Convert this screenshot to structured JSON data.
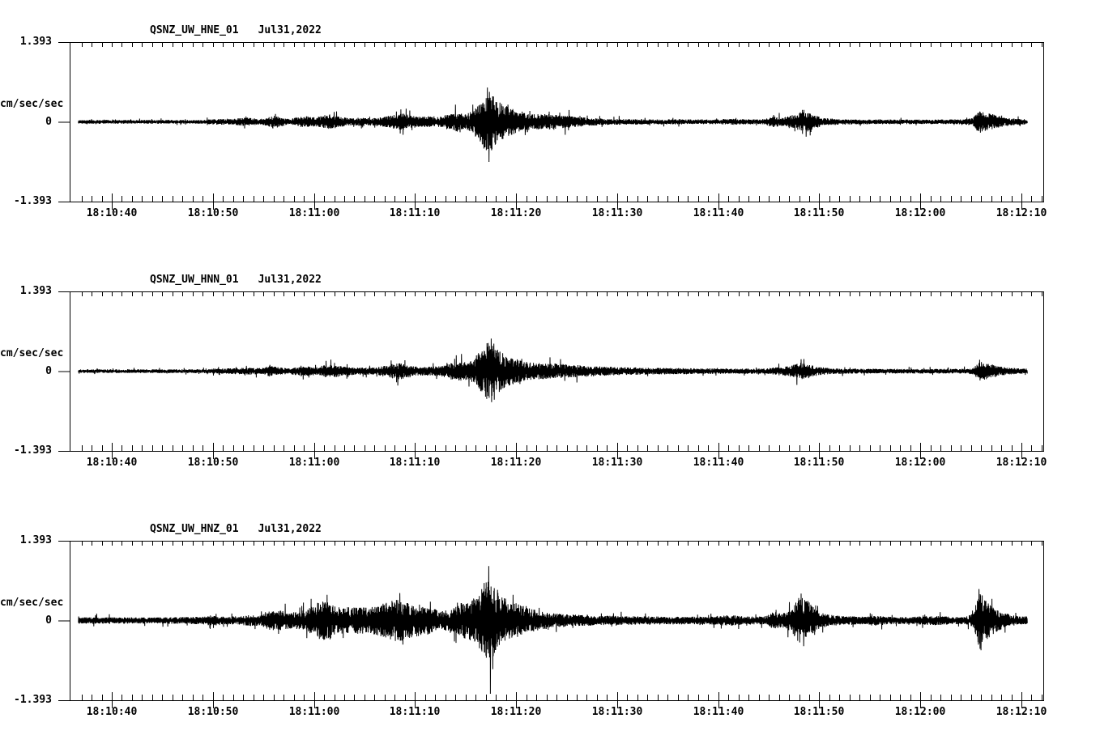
{
  "page": {
    "background": "#ffffff",
    "trace_color": "#000000",
    "frame_color": "#000000"
  },
  "axis": {
    "y_max_label": "1.393",
    "y_zero_label": "0",
    "y_min_label": "-1.393",
    "y_units": "cm/sec/sec",
    "x_tick_labels": [
      "18:10:40",
      "18:10:50",
      "18:11:00",
      "18:11:10",
      "18:11:20",
      "18:11:30",
      "18:11:40",
      "18:11:50",
      "18:12:00",
      "18:12:10"
    ],
    "x_tick_seconds": [
      40,
      50,
      60,
      70,
      80,
      90,
      100,
      110,
      120,
      130
    ]
  },
  "panels": [
    {
      "station": "QSNZ_UW_HNE_01",
      "date": "Jul31,2022"
    },
    {
      "station": "QSNZ_UW_HNN_01",
      "date": "Jul31,2022"
    },
    {
      "station": "QSNZ_UW_HNZ_01",
      "date": "Jul31,2022"
    }
  ],
  "chart_data": [
    {
      "type": "line",
      "variant": "seismogram-trace",
      "title": "QSNZ_UW_HNE_01  Jul31,2022",
      "station": "QSNZ_UW_HNE_01",
      "channel": "HNE",
      "date": "Jul31,2022",
      "ylabel": "cm/sec/sec",
      "ylim": [
        -1.393,
        1.393
      ],
      "y_tick_values": [
        1.393,
        0,
        -1.393
      ],
      "x_tick_labels": [
        "18:10:40",
        "18:10:50",
        "18:11:00",
        "18:11:10",
        "18:11:20",
        "18:11:30",
        "18:11:40",
        "18:11:50",
        "18:12:00",
        "18:12:10"
      ],
      "x_tick_seconds_after_1810": [
        40,
        50,
        60,
        70,
        80,
        90,
        100,
        110,
        120,
        130
      ],
      "trace_start_sec": 36.7,
      "trace_end_sec": 130.6,
      "noise_seed": 11,
      "envelope_sec_amp": [
        [
          36.7,
          0.03
        ],
        [
          49,
          0.03
        ],
        [
          50,
          0.042
        ],
        [
          52,
          0.05
        ],
        [
          53.5,
          0.07
        ],
        [
          54.6,
          0.045
        ],
        [
          55.3,
          0.06
        ],
        [
          56,
          0.11
        ],
        [
          56.8,
          0.07
        ],
        [
          57.6,
          0.045
        ],
        [
          58.4,
          0.08
        ],
        [
          59.3,
          0.09
        ],
        [
          60.2,
          0.07
        ],
        [
          60.8,
          0.1
        ],
        [
          61.6,
          0.12
        ],
        [
          62.6,
          0.08
        ],
        [
          63.5,
          0.06
        ],
        [
          64.5,
          0.065
        ],
        [
          65.5,
          0.06
        ],
        [
          66.5,
          0.07
        ],
        [
          67.5,
          0.1
        ],
        [
          68.5,
          0.14
        ],
        [
          69.5,
          0.11
        ],
        [
          70.5,
          0.08
        ],
        [
          71.5,
          0.09
        ],
        [
          72.5,
          0.08
        ],
        [
          73.5,
          0.12
        ],
        [
          74.2,
          0.16
        ],
        [
          75,
          0.12
        ],
        [
          75.8,
          0.18
        ],
        [
          76.4,
          0.3
        ],
        [
          77,
          0.52
        ],
        [
          77.4,
          0.55
        ],
        [
          78,
          0.38
        ],
        [
          78.6,
          0.28
        ],
        [
          79.2,
          0.26
        ],
        [
          80,
          0.17
        ],
        [
          81,
          0.14
        ],
        [
          82,
          0.12
        ],
        [
          83,
          0.13
        ],
        [
          84,
          0.11
        ],
        [
          85,
          0.1
        ],
        [
          86,
          0.08
        ],
        [
          87.5,
          0.06
        ],
        [
          89,
          0.05
        ],
        [
          91,
          0.045
        ],
        [
          95,
          0.04
        ],
        [
          100,
          0.038
        ],
        [
          101.5,
          0.05
        ],
        [
          102.5,
          0.04
        ],
        [
          104.5,
          0.04
        ],
        [
          105.5,
          0.09
        ],
        [
          106.3,
          0.07
        ],
        [
          107,
          0.1
        ],
        [
          107.8,
          0.12
        ],
        [
          108.4,
          0.2
        ],
        [
          109,
          0.16
        ],
        [
          109.7,
          0.1
        ],
        [
          110.5,
          0.06
        ],
        [
          112,
          0.045
        ],
        [
          115,
          0.038
        ],
        [
          120,
          0.036
        ],
        [
          124,
          0.04
        ],
        [
          125.2,
          0.06
        ],
        [
          125.9,
          0.19
        ],
        [
          126.7,
          0.14
        ],
        [
          127.5,
          0.11
        ],
        [
          128.3,
          0.07
        ],
        [
          129.5,
          0.05
        ],
        [
          130.6,
          0.04
        ]
      ],
      "spikes_sec_value": [
        [
          74.0,
          0.3
        ],
        [
          77.15,
          0.6
        ],
        [
          77.32,
          -0.7
        ],
        [
          79.2,
          0.3
        ],
        [
          108.7,
          -0.26
        ]
      ]
    },
    {
      "type": "line",
      "variant": "seismogram-trace",
      "title": "QSNZ_UW_HNN_01  Jul31,2022",
      "station": "QSNZ_UW_HNN_01",
      "channel": "HNN",
      "date": "Jul31,2022",
      "ylabel": "cm/sec/sec",
      "ylim": [
        -1.393,
        1.393
      ],
      "y_tick_values": [
        1.393,
        0,
        -1.393
      ],
      "x_tick_labels": [
        "18:10:40",
        "18:10:50",
        "18:11:00",
        "18:11:10",
        "18:11:20",
        "18:11:30",
        "18:11:40",
        "18:11:50",
        "18:12:00",
        "18:12:10"
      ],
      "x_tick_seconds_after_1810": [
        40,
        50,
        60,
        70,
        80,
        90,
        100,
        110,
        120,
        130
      ],
      "trace_start_sec": 36.7,
      "trace_end_sec": 130.6,
      "noise_seed": 22,
      "envelope_sec_amp": [
        [
          36.7,
          0.03
        ],
        [
          49,
          0.03
        ],
        [
          50.5,
          0.04
        ],
        [
          53.5,
          0.055
        ],
        [
          55,
          0.05
        ],
        [
          55.6,
          0.085
        ],
        [
          56.6,
          0.06
        ],
        [
          57.6,
          0.045
        ],
        [
          58.4,
          0.07
        ],
        [
          59.5,
          0.075
        ],
        [
          60.4,
          0.065
        ],
        [
          61,
          0.1
        ],
        [
          61.8,
          0.11
        ],
        [
          62.8,
          0.075
        ],
        [
          64,
          0.06
        ],
        [
          66,
          0.06
        ],
        [
          67.4,
          0.1
        ],
        [
          68.3,
          0.14
        ],
        [
          69.3,
          0.1
        ],
        [
          70.3,
          0.07
        ],
        [
          71.5,
          0.07
        ],
        [
          72.5,
          0.08
        ],
        [
          73.5,
          0.13
        ],
        [
          74.6,
          0.16
        ],
        [
          75.4,
          0.14
        ],
        [
          76.2,
          0.28
        ],
        [
          76.9,
          0.42
        ],
        [
          77.6,
          0.5
        ],
        [
          78.2,
          0.35
        ],
        [
          78.8,
          0.28
        ],
        [
          79.6,
          0.22
        ],
        [
          80.6,
          0.16
        ],
        [
          82,
          0.13
        ],
        [
          84,
          0.12
        ],
        [
          86,
          0.1
        ],
        [
          88,
          0.08
        ],
        [
          90,
          0.065
        ],
        [
          93,
          0.055
        ],
        [
          97,
          0.048
        ],
        [
          101,
          0.042
        ],
        [
          104.8,
          0.042
        ],
        [
          105.8,
          0.07
        ],
        [
          106.6,
          0.08
        ],
        [
          107.4,
          0.1
        ],
        [
          108.2,
          0.14
        ],
        [
          109,
          0.11
        ],
        [
          109.8,
          0.07
        ],
        [
          111,
          0.05
        ],
        [
          113,
          0.04
        ],
        [
          117,
          0.036
        ],
        [
          124,
          0.038
        ],
        [
          125.2,
          0.05
        ],
        [
          125.9,
          0.15
        ],
        [
          126.8,
          0.12
        ],
        [
          127.6,
          0.09
        ],
        [
          128.6,
          0.055
        ],
        [
          130,
          0.042
        ],
        [
          130.6,
          0.04
        ]
      ],
      "spikes_sec_value": [
        [
          61.2,
          0.18
        ],
        [
          68.3,
          -0.25
        ],
        [
          74.6,
          0.3
        ],
        [
          77.55,
          0.57
        ],
        [
          77.85,
          -0.5
        ],
        [
          108.2,
          0.21
        ],
        [
          125.85,
          0.2
        ]
      ]
    },
    {
      "type": "line",
      "variant": "seismogram-trace",
      "title": "QSNZ_UW_HNZ_01  Jul31,2022",
      "station": "QSNZ_UW_HNZ_01",
      "channel": "HNZ",
      "date": "Jul31,2022",
      "ylabel": "cm/sec/sec",
      "ylim": [
        -1.393,
        1.393
      ],
      "y_tick_values": [
        1.393,
        0,
        -1.393
      ],
      "x_tick_labels": [
        "18:10:40",
        "18:10:50",
        "18:11:00",
        "18:11:10",
        "18:11:20",
        "18:11:30",
        "18:11:40",
        "18:11:50",
        "18:12:00",
        "18:12:10"
      ],
      "x_tick_seconds_after_1810": [
        40,
        50,
        60,
        70,
        80,
        90,
        100,
        110,
        120,
        130
      ],
      "trace_start_sec": 36.7,
      "trace_end_sec": 130.6,
      "noise_seed": 33,
      "envelope_sec_amp": [
        [
          36.7,
          0.05
        ],
        [
          40,
          0.05
        ],
        [
          44,
          0.048
        ],
        [
          47,
          0.055
        ],
        [
          49,
          0.06
        ],
        [
          49.8,
          0.09
        ],
        [
          50.6,
          0.06
        ],
        [
          52.8,
          0.07
        ],
        [
          53.8,
          0.09
        ],
        [
          54.8,
          0.08
        ],
        [
          55.5,
          0.15
        ],
        [
          56.5,
          0.16
        ],
        [
          57.6,
          0.13
        ],
        [
          58.6,
          0.14
        ],
        [
          59.6,
          0.2
        ],
        [
          60.5,
          0.3
        ],
        [
          61.3,
          0.32
        ],
        [
          62.2,
          0.22
        ],
        [
          63.2,
          0.2
        ],
        [
          64.4,
          0.22
        ],
        [
          65.4,
          0.2
        ],
        [
          66.4,
          0.24
        ],
        [
          67.4,
          0.3
        ],
        [
          68.4,
          0.34
        ],
        [
          69.4,
          0.28
        ],
        [
          70.4,
          0.25
        ],
        [
          71.4,
          0.22
        ],
        [
          72.6,
          0.15
        ],
        [
          73.6,
          0.18
        ],
        [
          74.6,
          0.28
        ],
        [
          75.6,
          0.32
        ],
        [
          76.4,
          0.45
        ],
        [
          77.2,
          0.72
        ],
        [
          77.8,
          0.6
        ],
        [
          78.6,
          0.38
        ],
        [
          79.4,
          0.32
        ],
        [
          80.2,
          0.26
        ],
        [
          81.2,
          0.2
        ],
        [
          82.4,
          0.15
        ],
        [
          83.6,
          0.12
        ],
        [
          85,
          0.1
        ],
        [
          87,
          0.085
        ],
        [
          89,
          0.075
        ],
        [
          92,
          0.068
        ],
        [
          96,
          0.062
        ],
        [
          99,
          0.06
        ],
        [
          100.6,
          0.085
        ],
        [
          101.6,
          0.08
        ],
        [
          102.8,
          0.065
        ],
        [
          104.6,
          0.065
        ],
        [
          105.4,
          0.13
        ],
        [
          106.2,
          0.12
        ],
        [
          107.2,
          0.17
        ],
        [
          107.9,
          0.38
        ],
        [
          108.5,
          0.4
        ],
        [
          109.2,
          0.25
        ],
        [
          110,
          0.13
        ],
        [
          111,
          0.09
        ],
        [
          112.5,
          0.07
        ],
        [
          114.5,
          0.06
        ],
        [
          115.6,
          0.08
        ],
        [
          117,
          0.06
        ],
        [
          119,
          0.058
        ],
        [
          121.5,
          0.075
        ],
        [
          123,
          0.06
        ],
        [
          124.5,
          0.06
        ],
        [
          125.3,
          0.12
        ],
        [
          125.8,
          0.5
        ],
        [
          126.4,
          0.33
        ],
        [
          127.2,
          0.22
        ],
        [
          128,
          0.14
        ],
        [
          129,
          0.09
        ],
        [
          130,
          0.07
        ],
        [
          130.6,
          0.065
        ]
      ],
      "spikes_sec_value": [
        [
          38.5,
          0.12
        ],
        [
          49.7,
          -0.13
        ],
        [
          61.3,
          0.45
        ],
        [
          61.6,
          -0.33
        ],
        [
          68.5,
          0.48
        ],
        [
          68.8,
          -0.42
        ],
        [
          77.3,
          0.95
        ],
        [
          77.45,
          -1.28
        ],
        [
          77.7,
          -0.85
        ],
        [
          79.7,
          0.45
        ],
        [
          108.2,
          0.47
        ],
        [
          108.45,
          -0.45
        ],
        [
          125.8,
          0.55
        ],
        [
          126.0,
          -0.52
        ]
      ]
    }
  ]
}
